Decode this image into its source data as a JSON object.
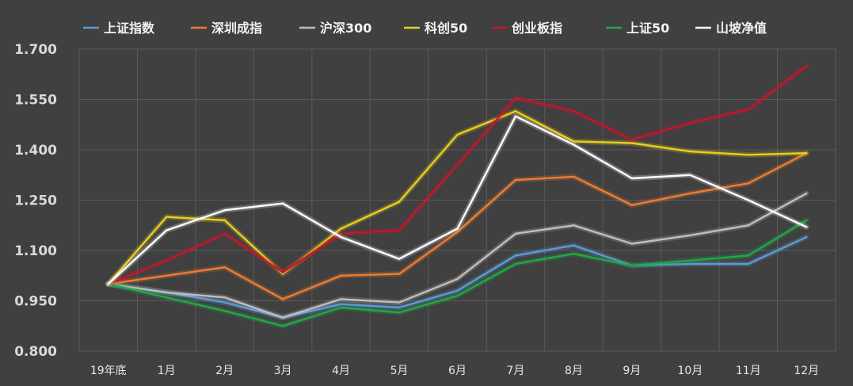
{
  "chart_data": {
    "type": "line",
    "title": "",
    "xlabel": "",
    "ylabel": "",
    "categories": [
      "19年底",
      "1月",
      "2月",
      "3月",
      "4月",
      "5月",
      "6月",
      "7月",
      "8月",
      "9月",
      "10月",
      "11月",
      "12月"
    ],
    "ylim": [
      0.8,
      1.7
    ],
    "yticks": [
      "1.700",
      "1.550",
      "1.400",
      "1.250",
      "1.100",
      "0.950",
      "0.800"
    ],
    "ytick_values": [
      1.7,
      1.55,
      1.4,
      1.25,
      1.1,
      0.95,
      0.8
    ],
    "grid": true,
    "legend_position": "top",
    "series": [
      {
        "name": "上证指数",
        "color": "#5b9bd5",
        "values": [
          1.0,
          0.975,
          0.945,
          0.9,
          0.94,
          0.93,
          0.98,
          1.085,
          1.115,
          1.055,
          1.06,
          1.06,
          1.14
        ]
      },
      {
        "name": "深圳成指",
        "color": "#ed7d31",
        "values": [
          1.0,
          1.025,
          1.05,
          0.955,
          1.025,
          1.03,
          1.155,
          1.31,
          1.32,
          1.235,
          1.27,
          1.3,
          1.39
        ]
      },
      {
        "name": "沪深300",
        "color": "#bfbfbf",
        "values": [
          1.0,
          0.975,
          0.96,
          0.9,
          0.955,
          0.945,
          1.015,
          1.15,
          1.175,
          1.12,
          1.145,
          1.175,
          1.27
        ]
      },
      {
        "name": "科创50",
        "color": "#e8cf1a",
        "values": [
          1.0,
          1.2,
          1.19,
          1.03,
          1.165,
          1.245,
          1.445,
          1.515,
          1.425,
          1.42,
          1.395,
          1.385,
          1.39
        ]
      },
      {
        "name": "创业板指",
        "color": "#c0182b",
        "values": [
          1.0,
          1.07,
          1.15,
          1.035,
          1.15,
          1.16,
          1.355,
          1.555,
          1.515,
          1.43,
          1.48,
          1.52,
          1.65
        ]
      },
      {
        "name": "上证50",
        "color": "#1fa84a",
        "values": [
          1.0,
          0.96,
          0.92,
          0.875,
          0.93,
          0.915,
          0.965,
          1.06,
          1.09,
          1.055,
          1.07,
          1.085,
          1.19
        ]
      },
      {
        "name": "山坡净值",
        "color": "#ffffff",
        "values": [
          1.0,
          1.16,
          1.22,
          1.24,
          1.14,
          1.075,
          1.165,
          1.5,
          1.415,
          1.315,
          1.325,
          1.25,
          1.17
        ]
      }
    ]
  }
}
